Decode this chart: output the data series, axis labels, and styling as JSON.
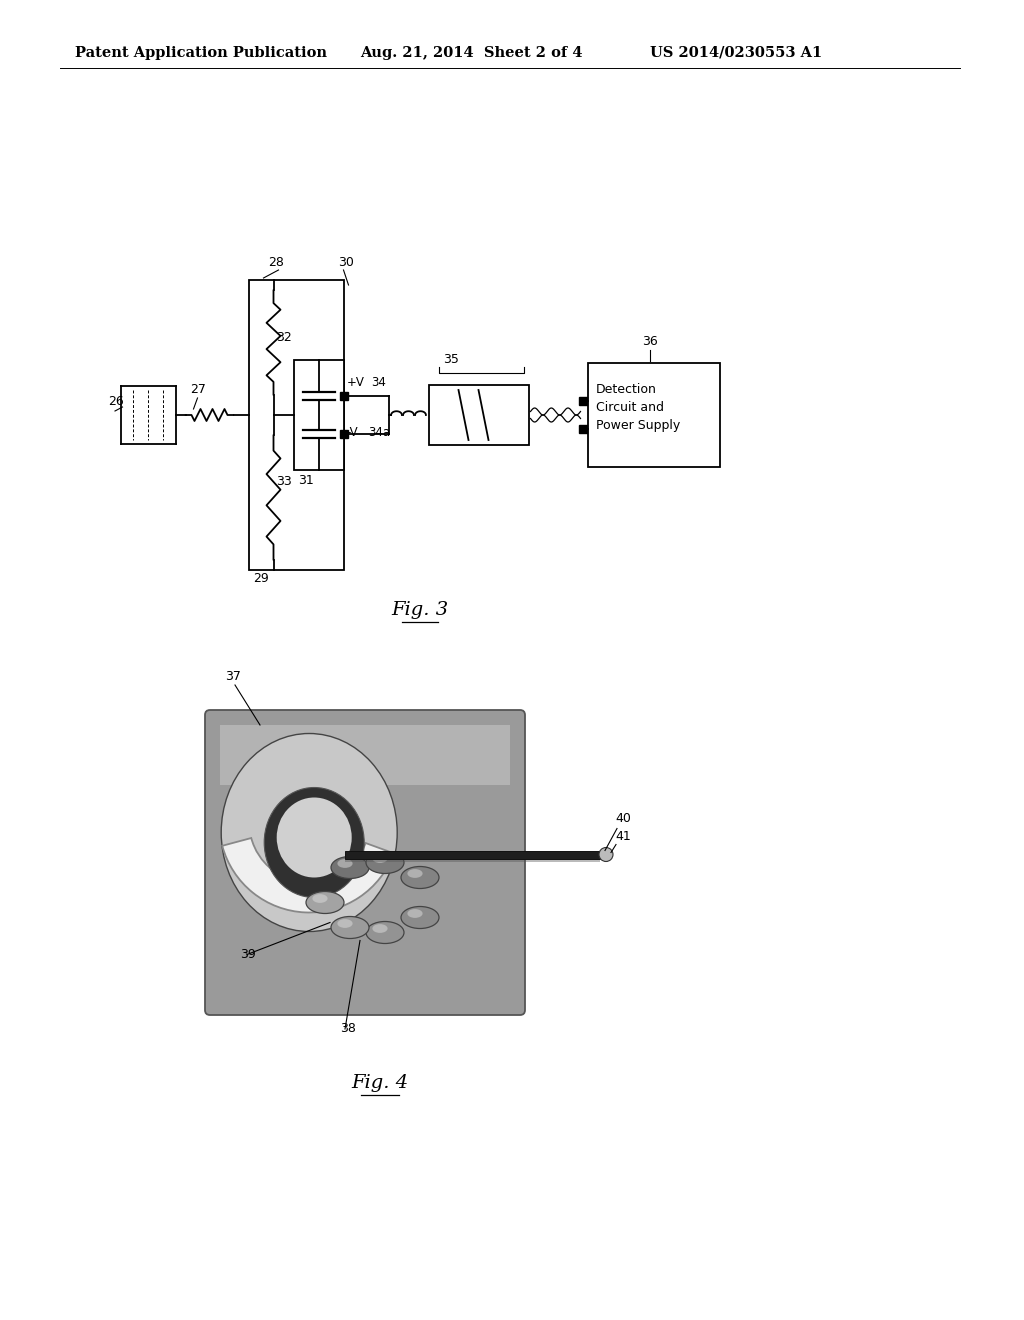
{
  "page_bg": "#ffffff",
  "header_left": "Patent Application Publication",
  "header_center": "Aug. 21, 2014  Sheet 2 of 4",
  "header_right": "US 2014/0230553 A1",
  "text_color": "#000000",
  "line_color": "#000000",
  "fig3_label": "Fig. 3",
  "fig4_label": "Fig. 4"
}
